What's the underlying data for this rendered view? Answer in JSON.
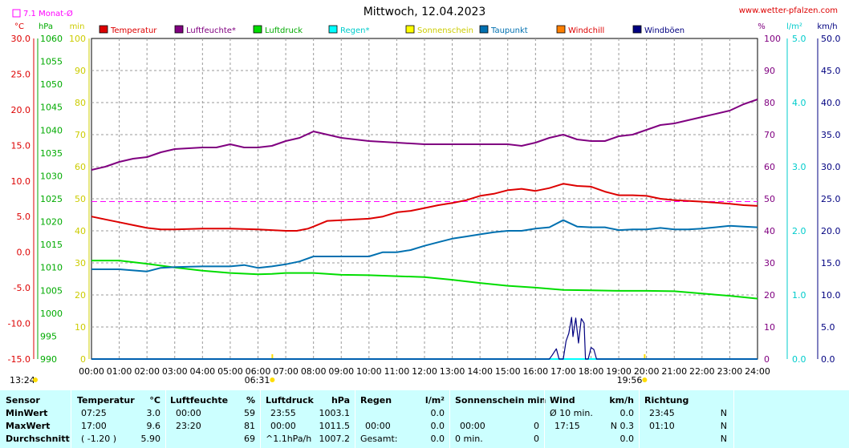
{
  "title": "Mittwoch, 12.04.2023",
  "website": "www.wetter-pfalzen.com",
  "monat_avg": "7.1 Monat-Ø",
  "colors": {
    "temperatur": "#dd0000",
    "luftfeuchte": "#800080",
    "luftdruck": "#00dd00",
    "regen": "#00ffff",
    "sonnenschein": "#ffff00",
    "taupunkt": "#0070b0",
    "windchill": "#ff7f00",
    "windboeen": "#000080",
    "monat_avg": "#ff00ff"
  },
  "legend": [
    {
      "label": "Temperatur",
      "color": "#dd0000",
      "text_color": "#dd0000"
    },
    {
      "label": "Luftfeuchte*",
      "color": "#800080",
      "text_color": "#800080"
    },
    {
      "label": "Luftdruck",
      "color": "#00dd00",
      "text_color": "#00aa00"
    },
    {
      "label": "Regen*",
      "color": "#00ffff",
      "text_color": "#00cccc"
    },
    {
      "label": "Sonnenschein",
      "color": "#ffff00",
      "text_color": "#cccc00"
    },
    {
      "label": "Taupunkt",
      "color": "#0070b0",
      "text_color": "#0070b0"
    },
    {
      "label": "Windchill",
      "color": "#ff7f00",
      "text_color": "#dd0000"
    },
    {
      "label": "Windböen",
      "color": "#000080",
      "text_color": "#000080"
    }
  ],
  "axes": {
    "temp": {
      "unit": "°C",
      "ticks": [
        "30.0",
        "25.0",
        "20.0",
        "15.0",
        "10.0",
        "5.0",
        "0.0",
        "-5.0",
        "-10.0",
        "-15.0"
      ],
      "range": [
        -15,
        30
      ]
    },
    "pressure": {
      "unit": "hPa",
      "ticks": [
        "1060",
        "1055",
        "1050",
        "1045",
        "1040",
        "1035",
        "1030",
        "1025",
        "1020",
        "1015",
        "1010",
        "1005",
        "1000",
        "995",
        "990"
      ],
      "range": [
        990,
        1060
      ]
    },
    "sun": {
      "unit": "min",
      "ticks": [
        "100",
        "90",
        "80",
        "70",
        "60",
        "50",
        "40",
        "30",
        "20",
        "10",
        "0"
      ],
      "range": [
        0,
        100
      ]
    },
    "humidity": {
      "unit": "%",
      "ticks": [
        "100",
        "90",
        "80",
        "70",
        "60",
        "50",
        "40",
        "30",
        "20",
        "10",
        "0"
      ],
      "range": [
        0,
        100
      ]
    },
    "rain": {
      "unit": "l/m²",
      "ticks": [
        "5.0",
        "4.0",
        "3.0",
        "2.0",
        "1.0",
        "0.0"
      ],
      "range": [
        0,
        5
      ]
    },
    "wind": {
      "unit": "km/h",
      "ticks": [
        "50.0",
        "45.0",
        "40.0",
        "35.0",
        "30.0",
        "25.0",
        "20.0",
        "15.0",
        "10.0",
        "5.0",
        "0.0"
      ],
      "range": [
        0,
        50
      ]
    }
  },
  "time_labels": [
    "00:00",
    "01:00",
    "02:00",
    "03:00",
    "04:00",
    "05:00",
    "06:00",
    "07:00",
    "08:00",
    "09:00",
    "10:00",
    "11:00",
    "12:00",
    "13:00",
    "14:00",
    "15:00",
    "16:00",
    "17:00",
    "18:00",
    "19:00",
    "20:00",
    "21:00",
    "22:00",
    "23:00",
    "24:00"
  ],
  "moonrise": "13:24",
  "sunrise": "06:31",
  "sunset": "19:56",
  "chart_data": {
    "type": "line",
    "x_unit": "hours",
    "monthly_avg_temp": 7.1,
    "series": [
      {
        "name": "Temperatur",
        "axis": "temp",
        "points": [
          [
            0,
            5.0
          ],
          [
            0.5,
            4.6
          ],
          [
            1,
            4.2
          ],
          [
            1.5,
            3.8
          ],
          [
            2,
            3.4
          ],
          [
            2.5,
            3.2
          ],
          [
            3,
            3.2
          ],
          [
            4,
            3.3
          ],
          [
            5,
            3.3
          ],
          [
            6,
            3.2
          ],
          [
            6.5,
            3.1
          ],
          [
            7,
            3.0
          ],
          [
            7.4,
            3.0
          ],
          [
            7.8,
            3.3
          ],
          [
            8,
            3.6
          ],
          [
            8.5,
            4.4
          ],
          [
            9,
            4.5
          ],
          [
            9.5,
            4.6
          ],
          [
            10,
            4.7
          ],
          [
            10.5,
            5.0
          ],
          [
            11,
            5.6
          ],
          [
            11.5,
            5.8
          ],
          [
            12,
            6.2
          ],
          [
            12.5,
            6.6
          ],
          [
            13,
            6.9
          ],
          [
            13.5,
            7.3
          ],
          [
            14,
            7.9
          ],
          [
            14.5,
            8.2
          ],
          [
            15,
            8.7
          ],
          [
            15.5,
            8.9
          ],
          [
            16,
            8.6
          ],
          [
            16.5,
            9.0
          ],
          [
            17,
            9.6
          ],
          [
            17.5,
            9.3
          ],
          [
            18,
            9.2
          ],
          [
            18.5,
            8.5
          ],
          [
            19,
            8.0
          ],
          [
            19.5,
            8.0
          ],
          [
            20,
            7.9
          ],
          [
            20.5,
            7.5
          ],
          [
            21,
            7.3
          ],
          [
            22,
            7.1
          ],
          [
            23,
            6.8
          ],
          [
            23.5,
            6.6
          ],
          [
            24,
            6.5
          ]
        ]
      },
      {
        "name": "Luftfeuchte*",
        "axis": "humidity",
        "points": [
          [
            0,
            59
          ],
          [
            0.5,
            60
          ],
          [
            1,
            61.5
          ],
          [
            1.5,
            62.5
          ],
          [
            2,
            63
          ],
          [
            2.5,
            64.5
          ],
          [
            3,
            65.5
          ],
          [
            4,
            66
          ],
          [
            4.5,
            66
          ],
          [
            5,
            67
          ],
          [
            5.5,
            66
          ],
          [
            6,
            66
          ],
          [
            6.5,
            66.5
          ],
          [
            7,
            68
          ],
          [
            7.5,
            69
          ],
          [
            8,
            71
          ],
          [
            8.5,
            70
          ],
          [
            9,
            69
          ],
          [
            10,
            68
          ],
          [
            11,
            67.5
          ],
          [
            12,
            67
          ],
          [
            13,
            67
          ],
          [
            14,
            67
          ],
          [
            15,
            67
          ],
          [
            15.5,
            66.5
          ],
          [
            16,
            67.5
          ],
          [
            16.5,
            69
          ],
          [
            17,
            70
          ],
          [
            17.5,
            68.5
          ],
          [
            18,
            68
          ],
          [
            18.5,
            68
          ],
          [
            19,
            69.5
          ],
          [
            19.5,
            70
          ],
          [
            20,
            71.5
          ],
          [
            20.5,
            73
          ],
          [
            21,
            73.5
          ],
          [
            21.5,
            74.5
          ],
          [
            22,
            75.5
          ],
          [
            23,
            77.5
          ],
          [
            23.5,
            79.5
          ],
          [
            24,
            81
          ]
        ]
      },
      {
        "name": "Luftdruck",
        "axis": "pressure",
        "points": [
          [
            0,
            1011.5
          ],
          [
            1,
            1011.5
          ],
          [
            2,
            1010.8
          ],
          [
            3,
            1010.0
          ],
          [
            4,
            1009.3
          ],
          [
            5,
            1008.8
          ],
          [
            6,
            1008.5
          ],
          [
            6.5,
            1008.6
          ],
          [
            7,
            1008.8
          ],
          [
            8,
            1008.8
          ],
          [
            9,
            1008.4
          ],
          [
            10,
            1008.3
          ],
          [
            11,
            1008.1
          ],
          [
            12,
            1007.9
          ],
          [
            13,
            1007.3
          ],
          [
            14,
            1006.6
          ],
          [
            15,
            1006.0
          ],
          [
            16,
            1005.6
          ],
          [
            17,
            1005.1
          ],
          [
            18,
            1005.0
          ],
          [
            19,
            1004.9
          ],
          [
            20,
            1004.9
          ],
          [
            21,
            1004.8
          ],
          [
            22,
            1004.3
          ],
          [
            23,
            1003.8
          ],
          [
            24,
            1003.2
          ]
        ]
      },
      {
        "name": "Taupunkt",
        "axis": "temp",
        "points": [
          [
            0,
            -2.4
          ],
          [
            1,
            -2.4
          ],
          [
            2,
            -2.7
          ],
          [
            2.5,
            -2.2
          ],
          [
            3,
            -2.1
          ],
          [
            4,
            -2.0
          ],
          [
            5,
            -2.0
          ],
          [
            5.5,
            -1.8
          ],
          [
            6,
            -2.2
          ],
          [
            6.5,
            -2.0
          ],
          [
            7,
            -1.7
          ],
          [
            7.5,
            -1.3
          ],
          [
            8,
            -0.6
          ],
          [
            8.5,
            -0.6
          ],
          [
            9,
            -0.6
          ],
          [
            10,
            -0.6
          ],
          [
            10.5,
            0.0
          ],
          [
            11,
            0.0
          ],
          [
            11.5,
            0.3
          ],
          [
            12,
            0.9
          ],
          [
            12.5,
            1.4
          ],
          [
            13,
            1.9
          ],
          [
            13.5,
            2.2
          ],
          [
            14,
            2.5
          ],
          [
            14.5,
            2.8
          ],
          [
            15,
            3.0
          ],
          [
            15.5,
            3.0
          ],
          [
            16,
            3.3
          ],
          [
            16.5,
            3.5
          ],
          [
            17,
            4.5
          ],
          [
            17.5,
            3.6
          ],
          [
            18,
            3.5
          ],
          [
            18.5,
            3.5
          ],
          [
            19,
            3.1
          ],
          [
            19.5,
            3.2
          ],
          [
            20,
            3.2
          ],
          [
            20.5,
            3.4
          ],
          [
            21,
            3.2
          ],
          [
            21.5,
            3.2
          ],
          [
            22,
            3.3
          ],
          [
            23,
            3.7
          ],
          [
            23.5,
            3.6
          ],
          [
            24,
            3.5
          ]
        ]
      },
      {
        "name": "Windböen",
        "axis": "wind",
        "points": [
          [
            0,
            0
          ],
          [
            16.5,
            0
          ],
          [
            16.6,
            0.6
          ],
          [
            16.75,
            1.6
          ],
          [
            16.85,
            0
          ],
          [
            17,
            0
          ],
          [
            17.1,
            2.8
          ],
          [
            17.2,
            4.0
          ],
          [
            17.3,
            6.5
          ],
          [
            17.35,
            3.5
          ],
          [
            17.45,
            6.4
          ],
          [
            17.55,
            2.5
          ],
          [
            17.65,
            6.3
          ],
          [
            17.75,
            5.6
          ],
          [
            17.8,
            0
          ],
          [
            17.9,
            0
          ],
          [
            18.0,
            1.8
          ],
          [
            18.1,
            1.5
          ],
          [
            18.2,
            0
          ],
          [
            24,
            0
          ]
        ]
      },
      {
        "name": "Regen*",
        "axis": "rain",
        "points": [
          [
            0,
            0
          ],
          [
            24,
            0
          ]
        ]
      }
    ]
  },
  "table": {
    "row_labels": [
      "Sensor",
      "MinWert",
      "MaxWert",
      "Durchschnitt"
    ],
    "temperatur": {
      "title": "Temperatur",
      "unit": "°C",
      "rows": [
        [
          "07:25",
          "3.0"
        ],
        [
          "17:00",
          "9.6"
        ],
        [
          "( -1.20 )",
          "5.90"
        ]
      ]
    },
    "luftfeuchte": {
      "title": "Luftfeuchte",
      "unit": "%",
      "rows": [
        [
          "00:00",
          "59"
        ],
        [
          "23:20",
          "81"
        ],
        [
          "",
          "69"
        ]
      ]
    },
    "luftdruck": {
      "title": "Luftdruck",
      "unit": "hPa",
      "rows": [
        [
          "23:55",
          "1003.1"
        ],
        [
          "00:00",
          "1011.5"
        ],
        [
          "^1.1hPa/h",
          "1007.2"
        ]
      ]
    },
    "regen": {
      "title": "Regen",
      "unit": "l/m²",
      "rows": [
        [
          "",
          "0.0"
        ],
        [
          "00:00",
          "0.0"
        ],
        [
          "Gesamt:",
          "0.0"
        ]
      ]
    },
    "sonne": {
      "title": "Sonnenschein min",
      "rows": [
        [
          "",
          ""
        ],
        [
          "00:00",
          "0"
        ],
        [
          "0 min.",
          "0"
        ]
      ]
    },
    "wind": {
      "title": "Wind",
      "unit": "km/h",
      "rows": [
        [
          "Ø 10 min.",
          "0.0"
        ],
        [
          "17:15",
          "N 0.3"
        ],
        [
          "",
          "0.0"
        ]
      ]
    },
    "richtung": {
      "title": "Richtung",
      "rows": [
        [
          "23:45",
          "N"
        ],
        [
          "01:10",
          "N"
        ],
        [
          "",
          "N"
        ]
      ]
    }
  }
}
